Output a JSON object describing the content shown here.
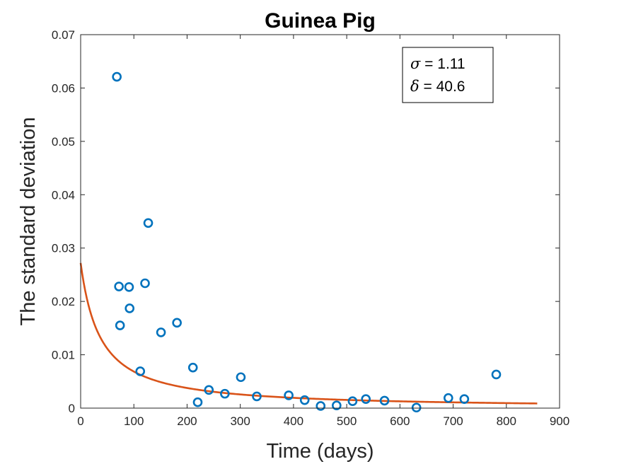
{
  "chart_data": {
    "type": "scatter",
    "title": "Guinea Pig",
    "xlabel": "Time (days)",
    "ylabel": "The standard deviation",
    "xlim": [
      0,
      900
    ],
    "ylim": [
      0,
      0.07
    ],
    "x_ticks": [
      0,
      100,
      200,
      300,
      400,
      500,
      600,
      700,
      800,
      900
    ],
    "x_tick_labels": [
      "0",
      "100",
      "200",
      "300",
      "400",
      "500",
      "600",
      "700",
      "800",
      "900"
    ],
    "y_ticks": [
      0,
      0.01,
      0.02,
      0.03,
      0.04,
      0.05,
      0.06,
      0.07
    ],
    "y_tick_labels": [
      "0",
      "0.01",
      "0.02",
      "0.03",
      "0.04",
      "0.05",
      "0.06",
      "0.07"
    ],
    "grid": false,
    "series": [
      {
        "type": "scatter",
        "marker": "circle-open",
        "color": "#0072BD",
        "points": [
          {
            "x": 68,
            "y": 0.0621
          },
          {
            "x": 72,
            "y": 0.0228
          },
          {
            "x": 74,
            "y": 0.0155
          },
          {
            "x": 91,
            "y": 0.0227
          },
          {
            "x": 92,
            "y": 0.0187
          },
          {
            "x": 112,
            "y": 0.0069
          },
          {
            "x": 121,
            "y": 0.0234
          },
          {
            "x": 127,
            "y": 0.0347
          },
          {
            "x": 151,
            "y": 0.0142
          },
          {
            "x": 181,
            "y": 0.016
          },
          {
            "x": 211,
            "y": 0.0076
          },
          {
            "x": 220,
            "y": 0.0011
          },
          {
            "x": 241,
            "y": 0.0034
          },
          {
            "x": 271,
            "y": 0.0027
          },
          {
            "x": 301,
            "y": 0.0058
          },
          {
            "x": 331,
            "y": 0.0022
          },
          {
            "x": 391,
            "y": 0.0024
          },
          {
            "x": 421,
            "y": 0.0015
          },
          {
            "x": 451,
            "y": 0.0004
          },
          {
            "x": 481,
            "y": 0.0005
          },
          {
            "x": 511,
            "y": 0.0013
          },
          {
            "x": 536,
            "y": 0.0017
          },
          {
            "x": 571,
            "y": 0.0014
          },
          {
            "x": 631,
            "y": 0.0001
          },
          {
            "x": 691,
            "y": 0.0019
          },
          {
            "x": 721,
            "y": 0.0017
          },
          {
            "x": 781,
            "y": 0.0063
          }
        ]
      },
      {
        "type": "line",
        "color": "#D95319",
        "model": {
          "form": "a / (1 + t / delta) ^ sigma",
          "a": 0.0272,
          "sigma": 1.11,
          "delta": 40.6
        },
        "x_range": [
          0,
          858
        ]
      }
    ],
    "annotation": {
      "lines": [
        {
          "symbol": "σ",
          "text": " = 1.11"
        },
        {
          "symbol": "δ",
          "text": " = 40.6"
        }
      ]
    }
  }
}
